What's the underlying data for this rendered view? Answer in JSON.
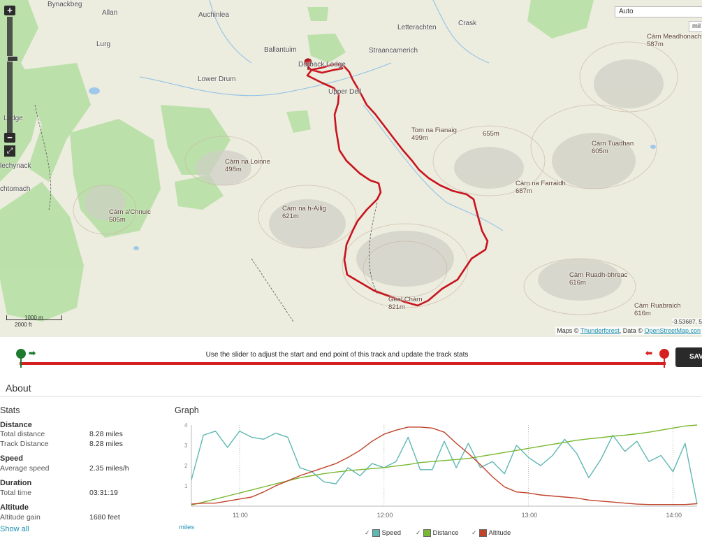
{
  "map": {
    "map_type": "Auto",
    "units_select": "mil",
    "scale_metric": "1000 m",
    "scale_imperial": "2000 ft",
    "attribution_prefix": "Maps ©",
    "attribution_link1": "Thunderforest",
    "attribution_mid": ", Data ©",
    "attribution_link2": "OpenStreetMap.con",
    "coords": "-3.53687, 5",
    "zoom_in": "+",
    "zoom_out": "−",
    "places": [
      "Bynackbeg",
      "Allan",
      "Auchinlea",
      "Lurg",
      "Letterachten",
      "Crask",
      "Ballantuim",
      "Straancamerich",
      "Lower Drum",
      "Dorback Lodge",
      "Upper Dell",
      "Lodge",
      "lechynack",
      "chtomach"
    ],
    "peaks": [
      {
        "name": "Càrn Meadhonach",
        "height": "587m"
      },
      {
        "name": "Tom na Fianaig",
        "height": "499m"
      },
      {
        "name": "",
        "height": "655m"
      },
      {
        "name": "Càrn Tuadhan",
        "height": "605m"
      },
      {
        "name": "Càrn na Loinne",
        "height": "498m"
      },
      {
        "name": "Càrn na Farraidh",
        "height": "687m"
      },
      {
        "name": "Càrn na h-Ailig",
        "height": "621m"
      },
      {
        "name": "Càrn a'Chnuic",
        "height": "505m"
      },
      {
        "name": "Càrn Ruadh-bhreac",
        "height": "616m"
      },
      {
        "name": "Geal Chàrn",
        "height": "821m"
      },
      {
        "name": "Càrn Ruabraich",
        "height": "616m"
      }
    ],
    "colors": {
      "route": "#c8141e",
      "forest": "#a8d89a",
      "water": "#9fc9ea"
    }
  },
  "slider": {
    "instruction": "Use the slider to adjust the start and end point of this track and update the track stats",
    "save_label": "SAV",
    "start_color": "#1e7a30",
    "end_color": "#d42020"
  },
  "about": {
    "title": "About",
    "stats_title": "Stats",
    "distance": {
      "title": "Distance",
      "total_label": "Total distance",
      "total_value": "8.28 miles",
      "track_label": "Track Distance",
      "track_value": "8.28 miles"
    },
    "speed": {
      "title": "Speed",
      "avg_label": "Average speed",
      "avg_value": "2.35 miles/h"
    },
    "duration": {
      "title": "Duration",
      "total_label": "Total time",
      "total_value": "03:31:19"
    },
    "altitude": {
      "title": "Altitude",
      "gain_label": "Altitude gain",
      "gain_value": "1680 feet"
    },
    "show_all": "Show all"
  },
  "graph": {
    "title": "Graph",
    "units": "miles",
    "legend": [
      {
        "label": "Speed",
        "color": "#5fb7b4"
      },
      {
        "label": "Distance",
        "color": "#79b832"
      },
      {
        "label": "Altitude",
        "color": "#c0432a"
      }
    ]
  },
  "chart_data": {
    "type": "line",
    "x": [
      "10:40",
      "10:45",
      "10:50",
      "10:55",
      "11:00",
      "11:05",
      "11:10",
      "11:15",
      "11:20",
      "11:25",
      "11:30",
      "11:35",
      "11:40",
      "11:45",
      "11:50",
      "11:55",
      "12:00",
      "12:05",
      "12:10",
      "12:15",
      "12:20",
      "12:25",
      "12:30",
      "12:35",
      "12:40",
      "12:45",
      "12:50",
      "12:55",
      "13:00",
      "13:05",
      "13:10",
      "13:15",
      "13:20",
      "13:25",
      "13:30",
      "13:35",
      "13:40",
      "13:45",
      "13:50",
      "13:55",
      "14:00",
      "14:05",
      "14:10"
    ],
    "x_ticks": [
      "11:00",
      "12:00",
      "13:00",
      "14:00"
    ],
    "y_ticks": [
      "4",
      "3",
      "2",
      "1"
    ],
    "ylim": [
      0,
      4
    ],
    "series": [
      {
        "name": "Speed",
        "values": [
          1.3,
          3.5,
          3.7,
          2.9,
          3.7,
          3.4,
          3.3,
          3.6,
          3.4,
          1.9,
          1.7,
          1.2,
          1.1,
          1.9,
          1.5,
          2.1,
          1.9,
          2.2,
          3.4,
          1.8,
          1.8,
          3.2,
          1.9,
          3.1,
          1.9,
          2.2,
          1.6,
          3.0,
          2.4,
          2.0,
          2.5,
          3.3,
          2.6,
          1.4,
          2.3,
          3.5,
          2.7,
          3.2,
          2.2,
          2.5,
          1.7,
          3.1,
          0.1
        ]
      },
      {
        "name": "Distance",
        "values": [
          0.05,
          0.2,
          0.35,
          0.5,
          0.65,
          0.8,
          0.95,
          1.1,
          1.25,
          1.4,
          1.5,
          1.6,
          1.68,
          1.75,
          1.8,
          1.85,
          1.9,
          1.98,
          2.05,
          2.15,
          2.2,
          2.25,
          2.3,
          2.35,
          2.45,
          2.55,
          2.65,
          2.75,
          2.85,
          2.95,
          3.05,
          3.15,
          3.25,
          3.32,
          3.38,
          3.45,
          3.5,
          3.57,
          3.65,
          3.75,
          3.85,
          3.95,
          4.0
        ]
      },
      {
        "name": "Altitude",
        "values": [
          0.1,
          0.15,
          0.15,
          0.25,
          0.35,
          0.45,
          0.7,
          1.0,
          1.25,
          1.5,
          1.7,
          1.9,
          2.1,
          2.4,
          2.75,
          3.2,
          3.55,
          3.75,
          3.9,
          3.9,
          3.85,
          3.65,
          3.1,
          2.6,
          2.05,
          1.45,
          0.95,
          0.7,
          0.65,
          0.55,
          0.5,
          0.45,
          0.4,
          0.3,
          0.25,
          0.2,
          0.15,
          0.1,
          0.08,
          0.08,
          0.08,
          0.08,
          0.12
        ]
      }
    ]
  }
}
